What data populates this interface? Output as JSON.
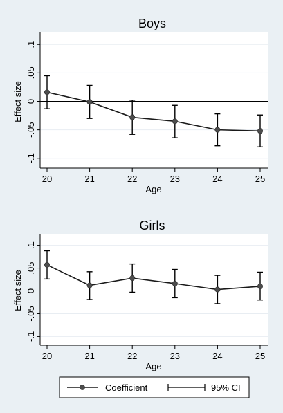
{
  "chart_data": [
    {
      "type": "line",
      "title": "Boys",
      "xlabel": "Age",
      "ylabel": "Effect size",
      "x": [
        20,
        21,
        22,
        23,
        24,
        25
      ],
      "xticks": [
        "20",
        "21",
        "22",
        "23",
        "24",
        "25"
      ],
      "ylim": [
        -0.11,
        0.11
      ],
      "yticks": [
        {
          "value": 0.1,
          "label": ".1"
        },
        {
          "value": 0.05,
          "label": ".05"
        },
        {
          "value": 0,
          "label": "0"
        },
        {
          "value": -0.05,
          "label": "-.05"
        },
        {
          "value": -0.1,
          "label": "-.1"
        }
      ],
      "grid": true,
      "reference_line": 0,
      "series": [
        {
          "name": "Coefficient",
          "values": [
            0.016,
            -0.001,
            -0.028,
            -0.035,
            -0.05,
            -0.052
          ],
          "ci_lower": [
            -0.013,
            -0.03,
            -0.058,
            -0.064,
            -0.078,
            -0.08
          ],
          "ci_upper": [
            0.045,
            0.028,
            0.002,
            -0.007,
            -0.022,
            -0.024
          ]
        }
      ]
    },
    {
      "type": "line",
      "title": "Girls",
      "xlabel": "Age",
      "ylabel": "Effect size",
      "x": [
        20,
        21,
        22,
        23,
        24,
        25
      ],
      "xticks": [
        "20",
        "21",
        "22",
        "23",
        "24",
        "25"
      ],
      "ylim": [
        -0.11,
        0.11
      ],
      "yticks": [
        {
          "value": 0.1,
          "label": ".1"
        },
        {
          "value": 0.05,
          "label": ".05"
        },
        {
          "value": 0,
          "label": "0"
        },
        {
          "value": -0.05,
          "label": "-.05"
        },
        {
          "value": -0.1,
          "label": "-.1"
        }
      ],
      "grid": true,
      "reference_line": 0,
      "series": [
        {
          "name": "Coefficient",
          "values": [
            0.057,
            0.012,
            0.028,
            0.016,
            0.003,
            0.01
          ],
          "ci_lower": [
            0.026,
            -0.019,
            -0.003,
            -0.015,
            -0.028,
            -0.02
          ],
          "ci_upper": [
            0.088,
            0.042,
            0.059,
            0.047,
            0.034,
            0.041
          ]
        }
      ]
    }
  ],
  "legend": {
    "placement": "bottom",
    "items": [
      {
        "label": "Coefficient",
        "symbol": "line-with-marker"
      },
      {
        "label": "95% CI",
        "symbol": "capped-interval"
      }
    ]
  },
  "colors": {
    "page_background": "#eaf0f4",
    "plot_background": "#ffffff",
    "grid": "#e8edf2",
    "ink": "#000000",
    "marker": "#4d4d4d",
    "line": "#1a1a1a"
  }
}
